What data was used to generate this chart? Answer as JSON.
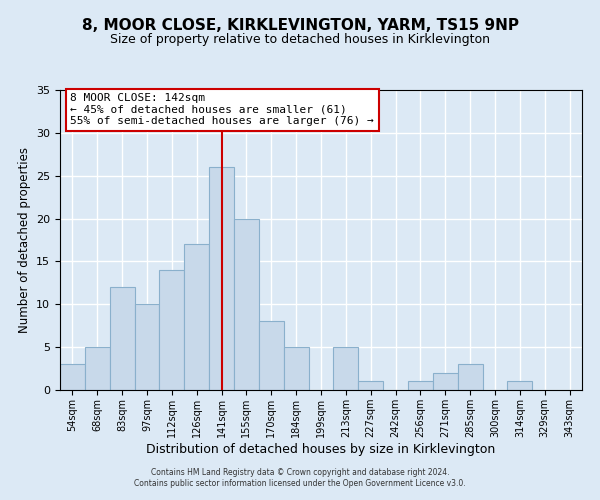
{
  "title": "8, MOOR CLOSE, KIRKLEVINGTON, YARM, TS15 9NP",
  "subtitle": "Size of property relative to detached houses in Kirklevington",
  "xlabel": "Distribution of detached houses by size in Kirklevington",
  "ylabel": "Number of detached properties",
  "footer_line1": "Contains HM Land Registry data © Crown copyright and database right 2024.",
  "footer_line2": "Contains public sector information licensed under the Open Government Licence v3.0.",
  "bin_labels": [
    "54sqm",
    "68sqm",
    "83sqm",
    "97sqm",
    "112sqm",
    "126sqm",
    "141sqm",
    "155sqm",
    "170sqm",
    "184sqm",
    "199sqm",
    "213sqm",
    "227sqm",
    "242sqm",
    "256sqm",
    "271sqm",
    "285sqm",
    "300sqm",
    "314sqm",
    "329sqm",
    "343sqm"
  ],
  "bar_heights": [
    3,
    5,
    12,
    10,
    14,
    17,
    26,
    20,
    8,
    5,
    0,
    5,
    1,
    0,
    1,
    2,
    3,
    0,
    1,
    0,
    0
  ],
  "bar_color": "#c8d9ea",
  "bar_edge_color": "#8ab0cc",
  "property_line_index": 6,
  "annotation_title": "8 MOOR CLOSE: 142sqm",
  "annotation_line1": "← 45% of detached houses are smaller (61)",
  "annotation_line2": "55% of semi-detached houses are larger (76) →",
  "annotation_box_color": "#ffffff",
  "annotation_box_edge": "#cc0000",
  "red_line_color": "#cc0000",
  "ylim": [
    0,
    35
  ],
  "yticks": [
    0,
    5,
    10,
    15,
    20,
    25,
    30,
    35
  ],
  "background_color": "#dce9f5",
  "plot_background": "#dce9f5",
  "grid_color": "#ffffff"
}
